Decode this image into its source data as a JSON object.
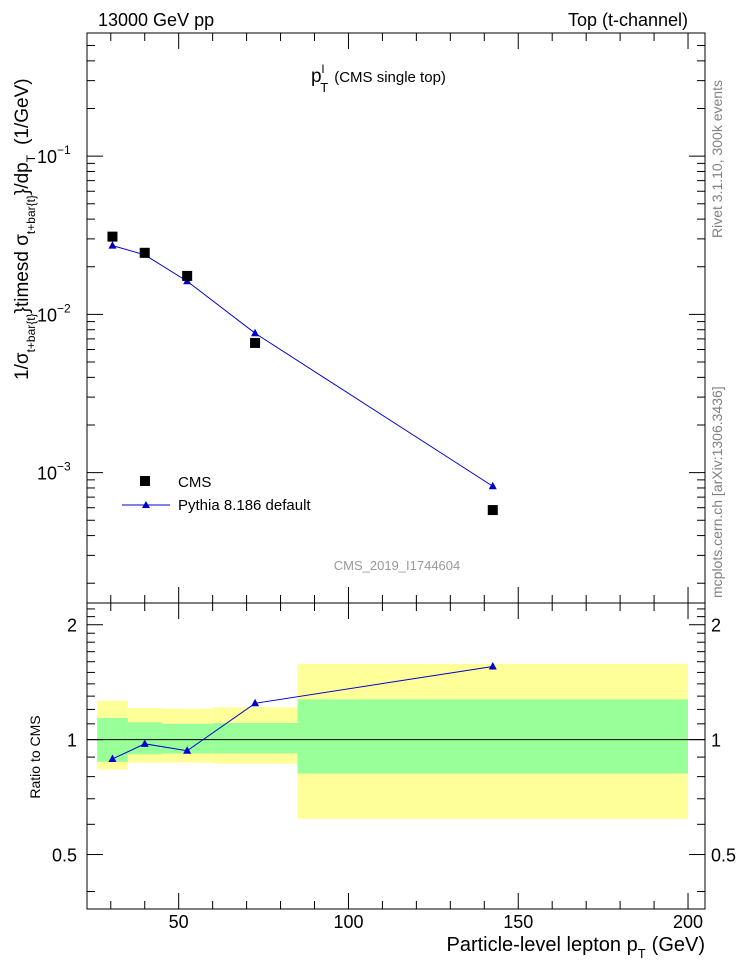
{
  "header": {
    "left": "13000 GeV pp",
    "right": "Top (t-channel)"
  },
  "sidebar": {
    "rivet": "Rivet 3.1.10,  300k events",
    "mcplots": "mcplots.cern.ch [arXiv:1306.3436]"
  },
  "chart_data": [
    {
      "type": "scatter",
      "title_main": "p",
      "title_sup": "l",
      "title_sub": "T",
      "title_extra": "(CMS single top)",
      "ylabel": {
        "part1": "1/σ",
        "part1_sub": "t+bar{t}",
        "part2": "}timesd σ",
        "part2_sub": "t+bar{t}",
        "part3": "}/dp",
        "part3_sub": "T",
        "unit": "(1/GeV)"
      },
      "y_scale": "log",
      "ylim": [
        0.00015,
        0.6
      ],
      "xlim": [
        23,
        205
      ],
      "y_ticks": [
        {
          "base": "10",
          "exp": "−1"
        },
        {
          "base": "10",
          "exp": "−2"
        },
        {
          "base": "10",
          "exp": "−3"
        }
      ],
      "watermark": "CMS_2019_I1744604",
      "legend_position": "bottom-left",
      "series": [
        {
          "name": "CMS",
          "marker": "square",
          "color": "#000000",
          "x": [
            30.5,
            40,
            52.5,
            72.5,
            142.5
          ],
          "y": [
            0.031,
            0.0245,
            0.0175,
            0.0066,
            0.00058
          ]
        },
        {
          "name": "Pythia 8.186 default",
          "marker": "triangle",
          "color": "#0000cc",
          "x": [
            30.5,
            40,
            52.5,
            72.5,
            142.5
          ],
          "y": [
            0.0272,
            0.0238,
            0.0162,
            0.0076,
            0.00082
          ]
        }
      ]
    },
    {
      "type": "line",
      "ylabel": "Ratio to CMS",
      "xlabel": {
        "text": "Particle-level lepton p",
        "sub": "T",
        "unit": "(GeV)"
      },
      "xlim": [
        23,
        205
      ],
      "ylim": [
        0.36,
        2.28
      ],
      "x_ticks": [
        "50",
        "100",
        "150",
        "200"
      ],
      "y_ticks": [
        "2",
        "1",
        "0.5"
      ],
      "reference_line": 1,
      "band_colors": {
        "inner": "#99ff99",
        "outer": "#ffff99"
      },
      "bands": [
        {
          "x": [
            26,
            35
          ],
          "outer": [
            0.835,
            1.265
          ],
          "inner": [
            0.875,
            1.14
          ]
        },
        {
          "x": [
            35,
            45
          ],
          "outer": [
            0.87,
            1.21
          ],
          "inner": [
            0.915,
            1.11
          ]
        },
        {
          "x": [
            45,
            60
          ],
          "outer": [
            0.87,
            1.205
          ],
          "inner": [
            0.92,
            1.1
          ]
        },
        {
          "x": [
            60,
            85
          ],
          "outer": [
            0.865,
            1.215
          ],
          "inner": [
            0.92,
            1.105
          ]
        },
        {
          "x": [
            85,
            200
          ],
          "outer": [
            0.62,
            1.58
          ],
          "inner": [
            0.815,
            1.275
          ]
        }
      ],
      "series": [
        {
          "name": "Pythia 8.186 default",
          "color": "#0000cc",
          "x": [
            30.5,
            40,
            52.5,
            72.5,
            142.5
          ],
          "y": [
            0.89,
            0.975,
            0.935,
            1.245,
            1.555
          ],
          "yerr": [
            0.006,
            0.008,
            0.008,
            0.015,
            0.03
          ]
        }
      ]
    }
  ]
}
